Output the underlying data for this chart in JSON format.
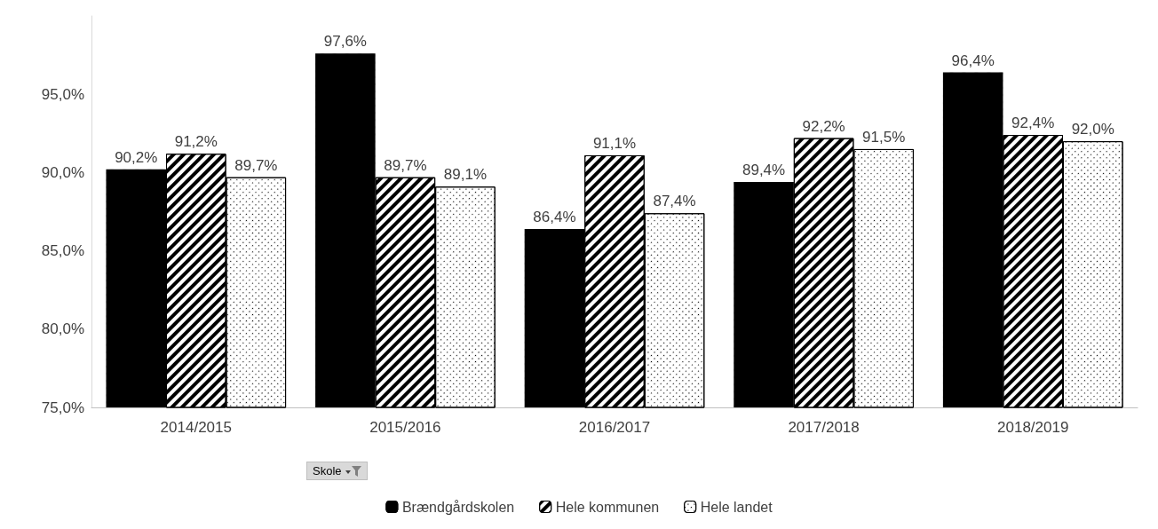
{
  "chart_data": {
    "type": "bar",
    "categories": [
      "2014/2015",
      "2015/2016",
      "2016/2017",
      "2017/2018",
      "2018/2019"
    ],
    "series": [
      {
        "name": "Brændgårdskolen",
        "color": "#000000",
        "values": [
          90.2,
          97.6,
          86.4,
          89.4,
          96.4
        ],
        "value_labels": [
          "90,2%",
          "97,6%",
          "86,4%",
          "89,4%",
          "96,4%"
        ]
      },
      {
        "name": "Hele kommunen",
        "color": "#ffffff",
        "values": [
          91.2,
          89.7,
          91.1,
          92.2,
          92.4
        ],
        "value_labels": [
          "91,2%",
          "89,7%",
          "91,1%",
          "92,2%",
          "92,4%"
        ]
      },
      {
        "name": "Hele landet",
        "color": "#ffffff",
        "values": [
          89.7,
          89.1,
          87.4,
          91.5,
          92.0
        ],
        "value_labels": [
          "89,7%",
          "89,1%",
          "87,4%",
          "91,5%",
          "92,0%"
        ]
      }
    ],
    "ylim": [
      75,
      100
    ],
    "yticks": [
      {
        "value": 75,
        "label": "75,0%"
      },
      {
        "value": 80,
        "label": "80,0%"
      },
      {
        "value": 85,
        "label": "85,0%"
      },
      {
        "value": 90,
        "label": "90,0%"
      },
      {
        "value": 95,
        "label": "95,0%"
      }
    ],
    "grid": false,
    "legend": "bottom",
    "annotations": [
      "Skole"
    ]
  }
}
